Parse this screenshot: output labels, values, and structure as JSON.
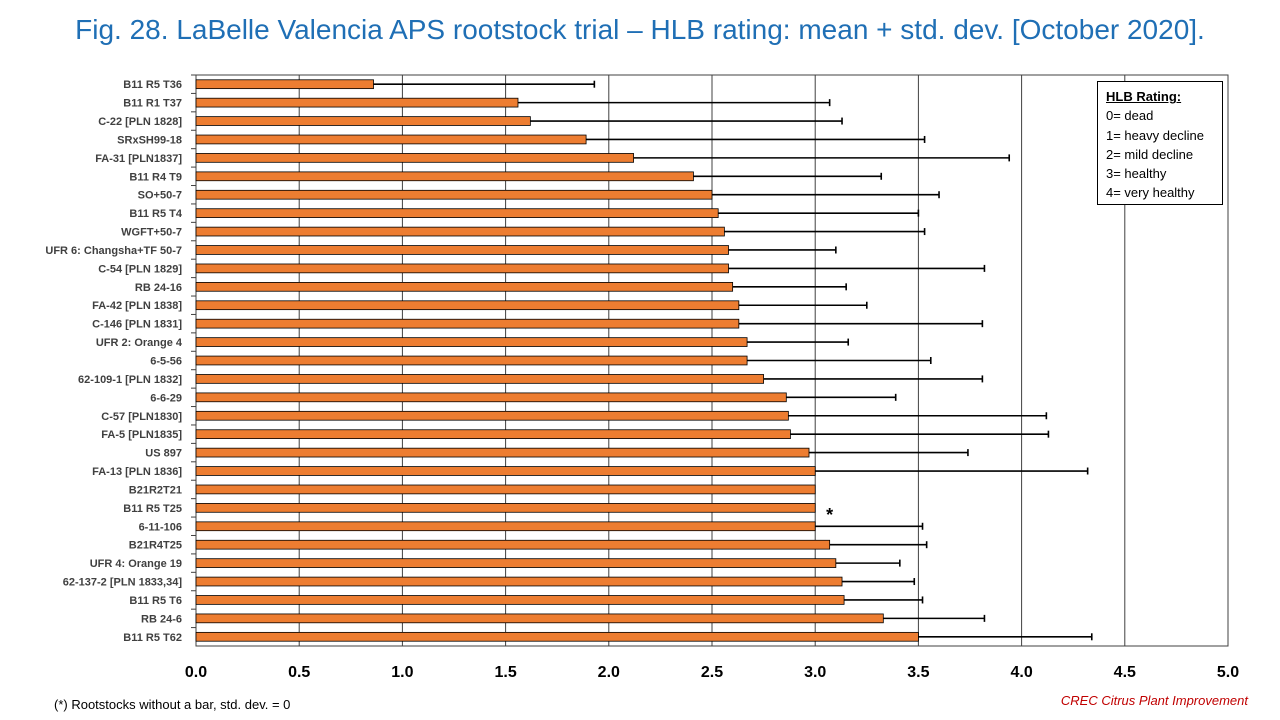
{
  "title": "Fig. 28. LaBelle Valencia APS rootstock trial – HLB rating: mean + std. dev. [October 2020].",
  "chart_data": {
    "type": "bar",
    "orientation": "horizontal",
    "categories": [
      "B11 R5 T36",
      "B11 R1 T37",
      "C-22 [PLN 1828]",
      "SRxSH99-18",
      "FA-31 [PLN1837]",
      "B11 R4 T9",
      "SO+50-7",
      "B11 R5 T4",
      "WGFT+50-7",
      "UFR 6: Changsha+TF 50-7",
      "C-54 [PLN 1829]",
      "RB 24-16",
      "FA-42 [PLN 1838]",
      "C-146 [PLN 1831]",
      "UFR 2: Orange 4",
      "6-5-56",
      "62-109-1 [PLN 1832]",
      "6-6-29",
      "C-57 [PLN1830]",
      "FA-5 [PLN1835]",
      "US 897",
      "FA-13 [PLN 1836]",
      "B21R2T21",
      "B11 R5 T25",
      "6-11-106",
      "B21R4T25",
      "UFR 4: Orange 19",
      "62-137-2 [PLN 1833,34]",
      "B11 R5 T6",
      "RB 24-6",
      "B11 R5 T62"
    ],
    "series": [
      {
        "values": [
          0.86,
          1.56,
          1.62,
          1.89,
          2.12,
          2.41,
          2.5,
          2.53,
          2.56,
          2.58,
          2.58,
          2.6,
          2.63,
          2.63,
          2.67,
          2.67,
          2.75,
          2.86,
          2.87,
          2.88,
          2.97,
          3.0,
          3.0,
          3.0,
          3.0,
          3.07,
          3.1,
          3.13,
          3.14,
          3.33,
          3.5
        ],
        "std_dev": [
          1.07,
          1.51,
          1.51,
          1.64,
          1.82,
          0.91,
          1.1,
          0.97,
          0.97,
          0.52,
          1.24,
          0.55,
          0.62,
          1.18,
          0.49,
          0.89,
          1.06,
          0.53,
          1.25,
          1.25,
          0.77,
          1.32,
          0,
          0,
          0.52,
          0.47,
          0.31,
          0.35,
          0.38,
          0.49,
          0.84
        ],
        "color": "#ed7d31"
      }
    ],
    "xlim": [
      0,
      5.0
    ],
    "xticks": [
      "0.0",
      "0.5",
      "1.0",
      "1.5",
      "2.0",
      "2.5",
      "3.0",
      "3.5",
      "4.0",
      "4.5",
      "5.0"
    ],
    "xgrid": true,
    "annotation": "*",
    "legend_placement": "top-right"
  },
  "legend": {
    "title": "HLB Rating:",
    "items": [
      "0= dead",
      "1= heavy decline",
      "2= mild decline",
      "3= healthy",
      "4= very healthy"
    ]
  },
  "footnote": "(*) Rootstocks without  a bar, std. dev. = 0",
  "credit": "CREC Citrus Plant Improvement"
}
